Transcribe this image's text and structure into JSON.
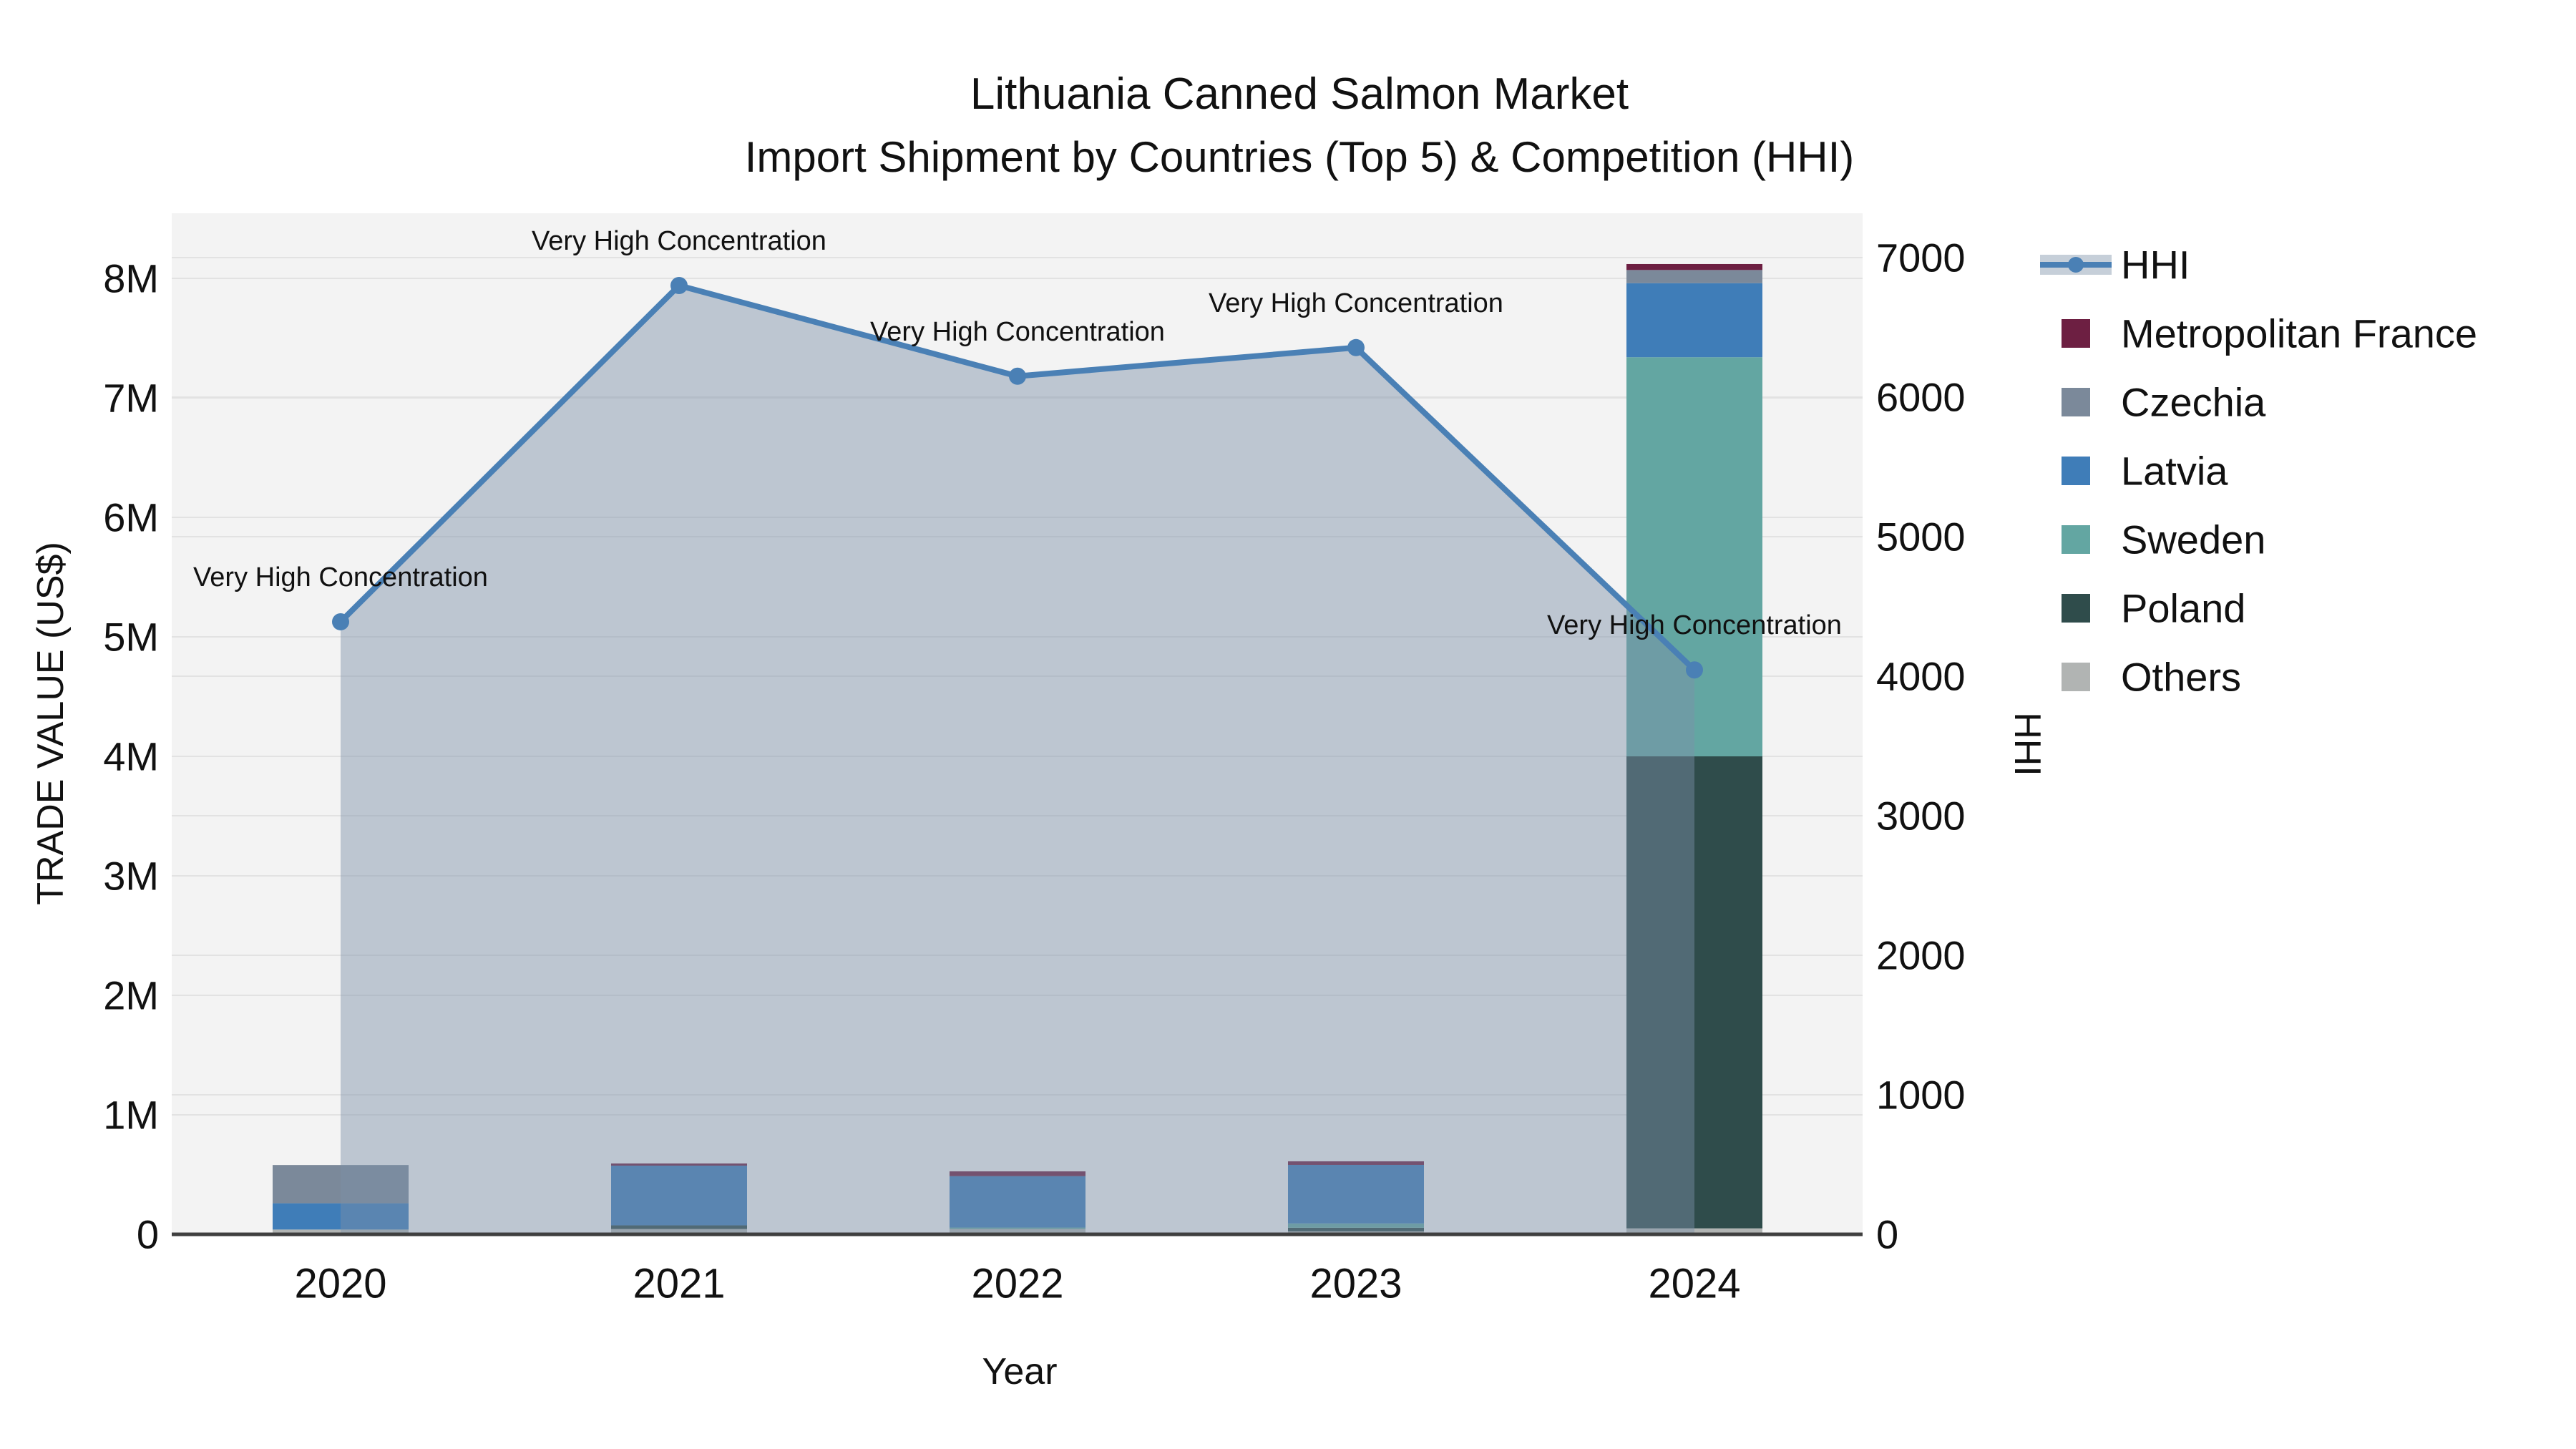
{
  "title": {
    "line1": "Lithuania Canned Salmon Market",
    "line2": "Import Shipment by Countries (Top 5) & Competition (HHI)"
  },
  "chart_data": {
    "type": "composite",
    "subtype": "stacked-bar-plus-line-dual-axis",
    "x_categories": [
      "2020",
      "2021",
      "2022",
      "2023",
      "2024"
    ],
    "xlabel": "Year",
    "left_axis": {
      "label": "TRADE VALUE (US$)",
      "tick_labels": [
        "0",
        "1M",
        "2M",
        "3M",
        "4M",
        "5M",
        "6M",
        "7M",
        "8M"
      ],
      "tick_values": [
        0,
        1000000,
        2000000,
        3000000,
        4000000,
        5000000,
        6000000,
        7000000,
        8000000
      ],
      "max": 8545000,
      "grid": true
    },
    "right_axis": {
      "label": "HHI",
      "tick_labels": [
        "0",
        "1000",
        "2000",
        "3000",
        "4000",
        "5000",
        "6000",
        "7000"
      ],
      "tick_values": [
        0,
        1000,
        2000,
        3000,
        4000,
        5000,
        6000,
        7000
      ],
      "max": 7318,
      "grid": true
    },
    "bar_series": [
      {
        "name": "Others",
        "color": "#b1b4b3",
        "values": [
          40000,
          45000,
          45000,
          25000,
          50000
        ]
      },
      {
        "name": "Poland",
        "color": "#2f4c4b",
        "values": [
          0,
          30000,
          0,
          30000,
          3950000
        ]
      },
      {
        "name": "Sweden",
        "color": "#63a6a2",
        "values": [
          0,
          0,
          12000,
          36000,
          3340000
        ]
      },
      {
        "name": "Latvia",
        "color": "#3f7db8",
        "values": [
          220000,
          500000,
          430000,
          490000,
          620000
        ]
      },
      {
        "name": "Czechia",
        "color": "#7b899a",
        "values": [
          320000,
          0,
          0,
          0,
          110000
        ]
      },
      {
        "name": "Metropolitan France",
        "color": "#6d1f42",
        "values": [
          0,
          18000,
          40000,
          30000,
          50000
        ]
      }
    ],
    "line_series": {
      "name": "HHI",
      "axis": "right",
      "color": "#4a80b5",
      "fill_color": "rgba(124,144,168,0.45)",
      "legend_band_color": "#c6cfd9",
      "values": [
        4390,
        6800,
        6150,
        6355,
        4045
      ]
    },
    "annotations": [
      "Very High Concentration",
      "Very High Concentration",
      "Very High Concentration",
      "Very High Concentration",
      "Very High Concentration"
    ],
    "legend": [
      {
        "label": "HHI",
        "type": "line"
      },
      {
        "label": "Metropolitan France",
        "type": "swatch",
        "color": "#6d1f42"
      },
      {
        "label": "Czechia",
        "type": "swatch",
        "color": "#7b899a"
      },
      {
        "label": "Latvia",
        "type": "swatch",
        "color": "#3f7db8"
      },
      {
        "label": "Sweden",
        "type": "swatch",
        "color": "#63a6a2"
      },
      {
        "label": "Poland",
        "type": "swatch",
        "color": "#2f4c4b"
      },
      {
        "label": "Others",
        "type": "swatch",
        "color": "#b1b4b3"
      }
    ],
    "colors": {
      "plot_background": "#f3f3f3",
      "figure_background": "#ffffff",
      "gridline": "#e2e2e2",
      "axis_line": "#3f3f3f",
      "annotation_text": "#000000"
    }
  }
}
